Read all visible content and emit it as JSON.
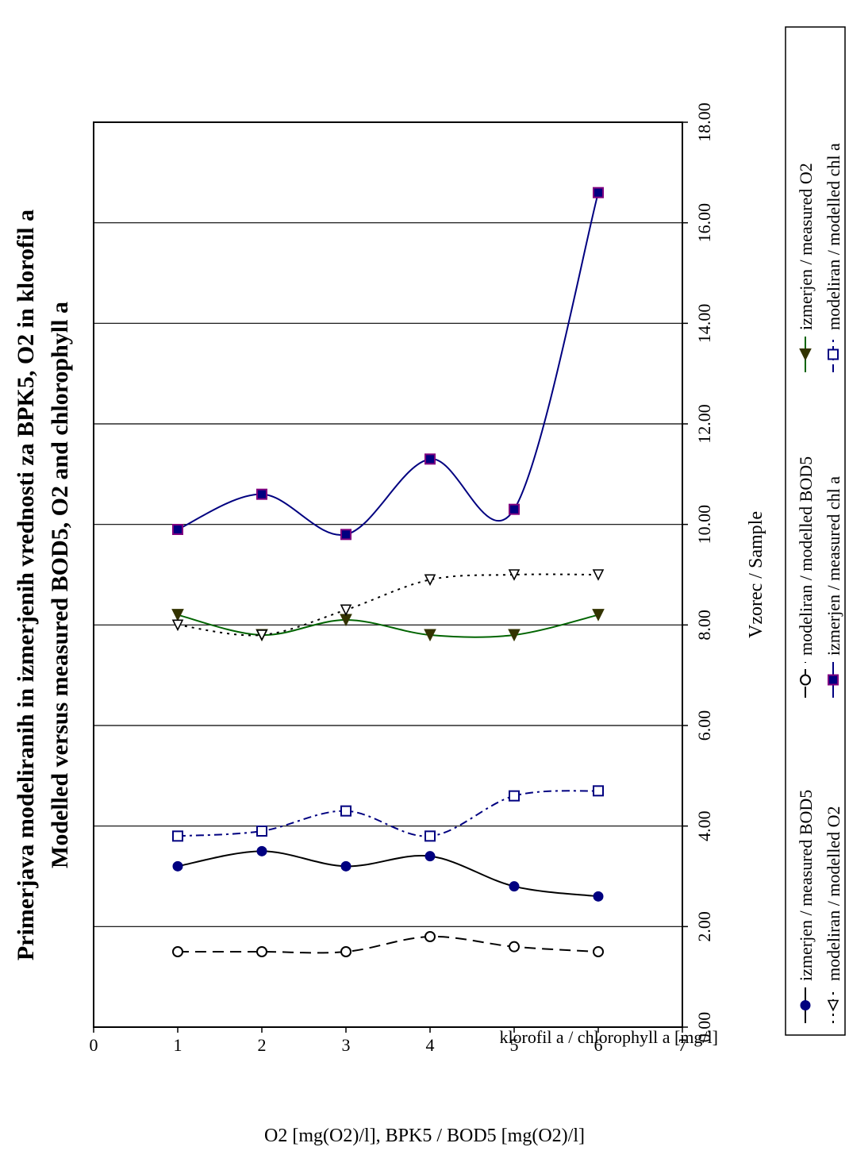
{
  "chart_data": {
    "type": "line",
    "title": "Primerjava modeliranih in izmerjenih vrednosti za BPK5, O2 in klorofil a",
    "subtitle": "Modelled  versus  measured BOD5, O2 and chlorophyll a",
    "xlabel": "Vzorec / Sample",
    "ylabel_1": "klorofil a / chlorophyll a [mg/l]",
    "ylabel_2": "O2 [mg(O2)/l], BPK5 / BOD5 [mg(O2)/l]",
    "xlim": [
      0,
      7
    ],
    "ylim": [
      0,
      18
    ],
    "x_ticks": [
      "0",
      "1",
      "2",
      "3",
      "4",
      "5",
      "6",
      "7"
    ],
    "y_ticks": [
      "0.00",
      "2.00",
      "4.00",
      "6.00",
      "8.00",
      "10.00",
      "12.00",
      "14.00",
      "16.00",
      "18.00"
    ],
    "grid": "horizontal",
    "legend_position": "bottom",
    "x": [
      1,
      2,
      3,
      4,
      5,
      6
    ],
    "series": [
      {
        "name": "izmerjen / measured BOD5",
        "color": "#000080",
        "line_color": "#000000",
        "dash": "solid",
        "marker": "filled-circle",
        "values": [
          3.2,
          3.5,
          3.2,
          3.4,
          2.8,
          2.6
        ]
      },
      {
        "name": "modeliran / modelled BOD5",
        "color": "#000000",
        "line_color": "#000000",
        "dash": "long-dash",
        "marker": "open-circle",
        "values": [
          1.5,
          1.5,
          1.5,
          1.8,
          1.6,
          1.5
        ]
      },
      {
        "name": "izmerjen / measured O2",
        "color": "#333300",
        "line_color": "#006400",
        "dash": "solid",
        "marker": "filled-triangle",
        "values": [
          8.2,
          7.8,
          8.1,
          7.8,
          7.8,
          8.2
        ]
      },
      {
        "name": "modeliran / modelled O2",
        "color": "#000000",
        "line_color": "#000000",
        "dash": "dotted",
        "marker": "open-triangle",
        "values": [
          8.0,
          7.8,
          8.3,
          8.9,
          9.0,
          9.0
        ]
      },
      {
        "name": "izmerjen / measured chl a",
        "color": "#800080",
        "line_color": "#000080",
        "dash": "solid",
        "marker": "filled-square",
        "values": [
          9.9,
          10.6,
          9.8,
          11.3,
          10.3,
          16.6
        ]
      },
      {
        "name": "modeliran / modelled chl a",
        "color": "#000080",
        "line_color": "#000080",
        "dash": "dash-dot",
        "marker": "open-square",
        "values": [
          3.8,
          3.9,
          4.3,
          3.8,
          4.6,
          4.7
        ]
      }
    ]
  }
}
